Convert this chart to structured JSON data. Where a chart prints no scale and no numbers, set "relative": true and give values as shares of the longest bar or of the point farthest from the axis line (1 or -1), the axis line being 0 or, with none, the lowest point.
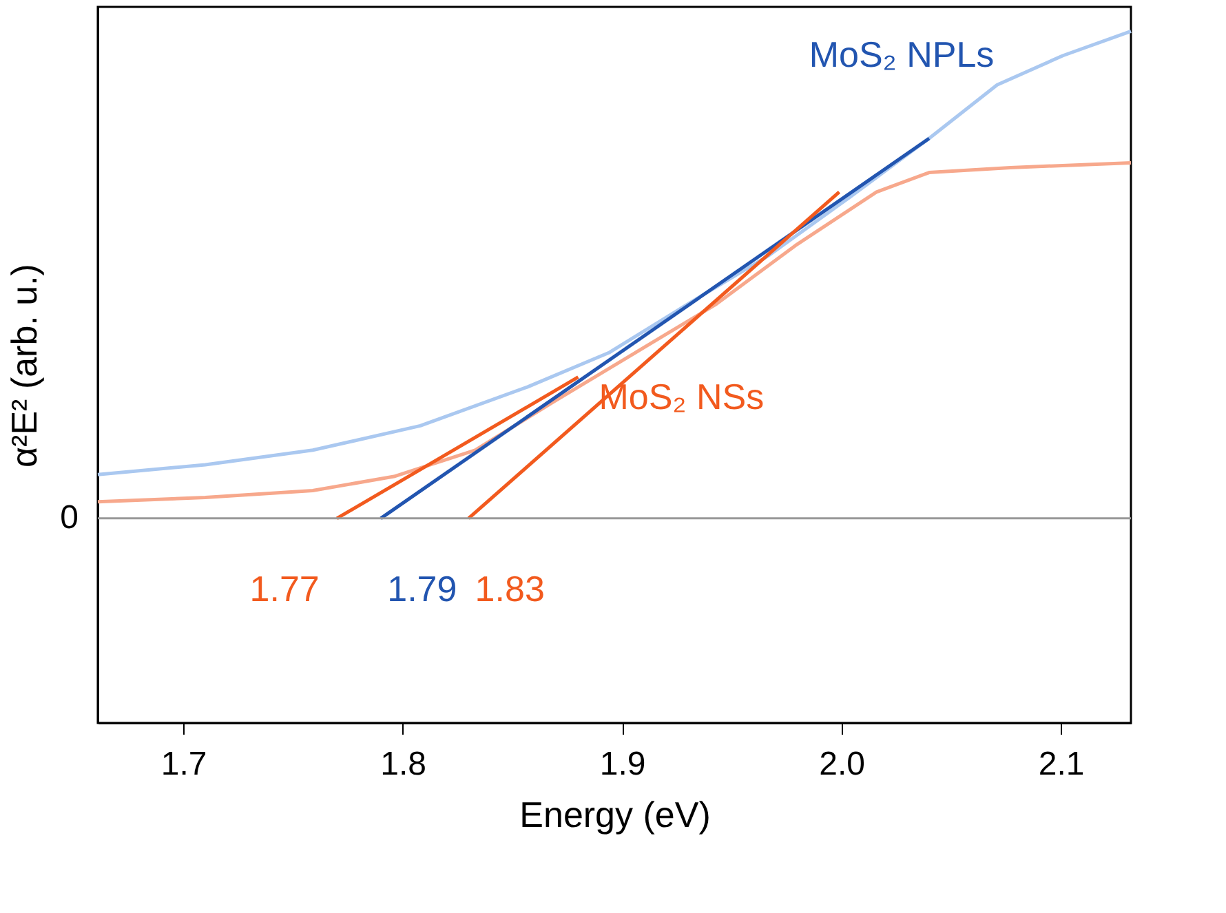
{
  "chart_data": {
    "type": "line",
    "relative": true,
    "xlabel": "Energy (eV)",
    "ylabel": "α²E² (arb. u.)",
    "xlim": [
      1.661,
      2.132
    ],
    "xticks": [
      1.7,
      1.8,
      1.9,
      {
        "value": 2.0,
        "label": "2.0"
      },
      2.1
    ],
    "grid": false,
    "series": [
      {
        "color": "#aac8f0",
        "x": [
          1.661,
          1.71,
          1.759,
          1.808,
          1.857,
          1.894,
          1.93,
          1.967,
          2.004,
          2.04,
          2.071,
          2.101,
          2.132
        ],
        "values": [
          0.09,
          0.11,
          0.14,
          0.19,
          0.27,
          0.34,
          0.44,
          0.54,
          0.66,
          0.78,
          0.89,
          0.95,
          1.0
        ]
      },
      {
        "color": "#f7a88c",
        "x": [
          1.661,
          1.71,
          1.759,
          1.796,
          1.833,
          1.869,
          1.906,
          1.943,
          1.979,
          2.016,
          2.04,
          2.077,
          2.132
        ],
        "values": [
          0.034,
          0.043,
          0.057,
          0.086,
          0.14,
          0.24,
          0.34,
          0.44,
          0.56,
          0.67,
          0.71,
          0.72,
          0.73
        ]
      },
      {
        "name": "MoS₂ NSs",
        "color": "#f25a1e",
        "x": [
          1.77,
          1.88
        ],
        "values": [
          0,
          0.29
        ]
      },
      {
        "name": "MoS₂ NPLs",
        "color": "#2255b0",
        "x": [
          1.79,
          2.04
        ],
        "values": [
          0,
          0.78
        ]
      },
      {
        "color": "#f25a1e",
        "x": [
          1.83,
          1.999
        ],
        "values": [
          0,
          0.67
        ]
      }
    ],
    "ref_lines": [
      {
        "axis": "y",
        "value": 0,
        "label": "0",
        "color": "#999999"
      }
    ],
    "annotations": [
      {
        "text": "1.77",
        "x": 1.77,
        "y": 0
      },
      {
        "text": "1.79",
        "x": 1.79,
        "y": 0
      },
      {
        "text": "1.83",
        "x": 1.83,
        "y": 0
      }
    ]
  }
}
